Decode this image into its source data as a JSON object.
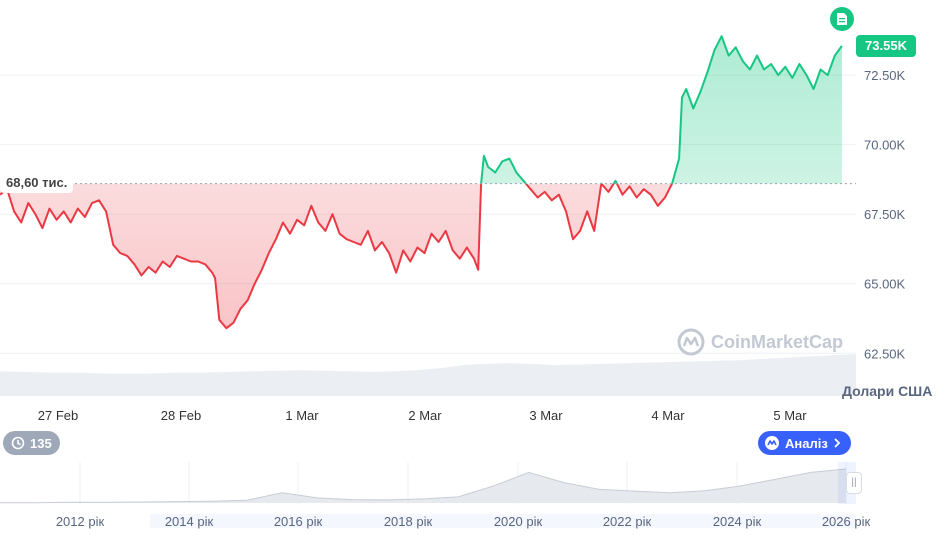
{
  "chart_data": {
    "type": "area",
    "x_axis_labels": [
      "27 Feb",
      "28 Feb",
      "1 Mar",
      "2 Mar",
      "3 Mar",
      "4 Mar",
      "5 Mar"
    ],
    "y_axis_labels": [
      "62.50K",
      "65.00K",
      "67.50K",
      "70.00K",
      "72.50K"
    ],
    "y_ticks": [
      62500,
      65000,
      67500,
      70000,
      72500
    ],
    "ylim": [
      61000,
      75200
    ],
    "x_range_days": [
      26.5,
      32.55
    ],
    "reference_value": 68600,
    "reference_label": "68,60 тис.",
    "last_value": 73550,
    "last_value_label": "73.55K",
    "currency_label": "Долари США",
    "above_color": "#16c784",
    "below_color": "#ea3943",
    "grid": "horizontal",
    "series": [
      {
        "points": [
          [
            26.5,
            68200
          ],
          [
            26.55,
            68400
          ],
          [
            26.6,
            67600
          ],
          [
            26.65,
            67200
          ],
          [
            26.7,
            67900
          ],
          [
            26.75,
            67500
          ],
          [
            26.8,
            67000
          ],
          [
            26.85,
            67700
          ],
          [
            26.9,
            67300
          ],
          [
            26.95,
            67600
          ],
          [
            27.0,
            67200
          ],
          [
            27.05,
            67700
          ],
          [
            27.1,
            67400
          ],
          [
            27.15,
            67900
          ],
          [
            27.2,
            68000
          ],
          [
            27.25,
            67600
          ],
          [
            27.3,
            66400
          ],
          [
            27.35,
            66100
          ],
          [
            27.4,
            66000
          ],
          [
            27.45,
            65700
          ],
          [
            27.5,
            65300
          ],
          [
            27.55,
            65600
          ],
          [
            27.6,
            65400
          ],
          [
            27.65,
            65800
          ],
          [
            27.7,
            65600
          ],
          [
            27.75,
            66000
          ],
          [
            27.8,
            65900
          ],
          [
            27.85,
            65800
          ],
          [
            27.9,
            65800
          ],
          [
            27.95,
            65700
          ],
          [
            28.0,
            65400
          ],
          [
            28.02,
            65200
          ],
          [
            28.05,
            63700
          ],
          [
            28.1,
            63400
          ],
          [
            28.15,
            63600
          ],
          [
            28.2,
            64100
          ],
          [
            28.25,
            64400
          ],
          [
            28.3,
            65000
          ],
          [
            28.35,
            65500
          ],
          [
            28.4,
            66100
          ],
          [
            28.45,
            66600
          ],
          [
            28.5,
            67200
          ],
          [
            28.55,
            66800
          ],
          [
            28.6,
            67300
          ],
          [
            28.65,
            67100
          ],
          [
            28.7,
            67800
          ],
          [
            28.75,
            67200
          ],
          [
            28.8,
            66900
          ],
          [
            28.85,
            67500
          ],
          [
            28.9,
            66800
          ],
          [
            28.95,
            66600
          ],
          [
            29.0,
            66500
          ],
          [
            29.05,
            66400
          ],
          [
            29.1,
            66900
          ],
          [
            29.15,
            66200
          ],
          [
            29.2,
            66500
          ],
          [
            29.25,
            66100
          ],
          [
            29.3,
            65400
          ],
          [
            29.35,
            66200
          ],
          [
            29.4,
            65800
          ],
          [
            29.45,
            66300
          ],
          [
            29.5,
            66100
          ],
          [
            29.55,
            66800
          ],
          [
            29.6,
            66500
          ],
          [
            29.65,
            66900
          ],
          [
            29.7,
            66200
          ],
          [
            29.75,
            65900
          ],
          [
            29.8,
            66300
          ],
          [
            29.85,
            65900
          ],
          [
            29.88,
            65500
          ],
          [
            29.9,
            68600
          ],
          [
            29.92,
            69600
          ],
          [
            29.95,
            69200
          ],
          [
            30.0,
            69000
          ],
          [
            30.05,
            69400
          ],
          [
            30.1,
            69500
          ],
          [
            30.15,
            69000
          ],
          [
            30.2,
            68700
          ],
          [
            30.25,
            68400
          ],
          [
            30.3,
            68100
          ],
          [
            30.35,
            68300
          ],
          [
            30.4,
            68000
          ],
          [
            30.45,
            68200
          ],
          [
            30.5,
            67600
          ],
          [
            30.55,
            66600
          ],
          [
            30.6,
            66900
          ],
          [
            30.65,
            67600
          ],
          [
            30.7,
            66900
          ],
          [
            30.75,
            68600
          ],
          [
            30.8,
            68300
          ],
          [
            30.85,
            68700
          ],
          [
            30.9,
            68200
          ],
          [
            30.95,
            68500
          ],
          [
            31.0,
            68100
          ],
          [
            31.05,
            68400
          ],
          [
            31.1,
            68200
          ],
          [
            31.15,
            67800
          ],
          [
            31.2,
            68100
          ],
          [
            31.25,
            68600
          ],
          [
            31.3,
            69500
          ],
          [
            31.32,
            71700
          ],
          [
            31.35,
            72000
          ],
          [
            31.4,
            71300
          ],
          [
            31.45,
            71900
          ],
          [
            31.5,
            72600
          ],
          [
            31.55,
            73400
          ],
          [
            31.6,
            73900
          ],
          [
            31.65,
            73200
          ],
          [
            31.7,
            73500
          ],
          [
            31.75,
            73000
          ],
          [
            31.8,
            72700
          ],
          [
            31.85,
            73200
          ],
          [
            31.9,
            72700
          ],
          [
            31.95,
            72900
          ],
          [
            32.0,
            72500
          ],
          [
            32.05,
            72800
          ],
          [
            32.1,
            72400
          ],
          [
            32.15,
            72900
          ],
          [
            32.2,
            72500
          ],
          [
            32.25,
            72000
          ],
          [
            32.3,
            72700
          ],
          [
            32.35,
            72500
          ],
          [
            32.4,
            73200
          ],
          [
            32.45,
            73550
          ]
        ]
      }
    ],
    "volume_values": [
      40,
      39,
      38,
      38,
      37,
      36,
      36,
      37,
      38,
      38,
      39,
      40,
      41,
      42,
      41,
      40,
      39,
      40,
      42,
      45,
      50,
      52,
      53,
      52,
      50,
      51,
      52,
      53,
      54,
      55,
      56,
      57,
      58,
      60,
      62,
      64,
      66,
      68
    ],
    "navigator": {
      "x_labels": [
        "2012 рік",
        "2014 рік",
        "2016 рік",
        "2018 рік",
        "2020 рік",
        "2022 рік",
        "2024 рік",
        "2026 рік"
      ],
      "history": [
        0.01,
        0.01,
        0.02,
        0.02,
        0.03,
        0.04,
        0.05,
        0.08,
        0.3,
        0.15,
        0.1,
        0.09,
        0.12,
        0.18,
        0.5,
        0.9,
        0.6,
        0.4,
        0.35,
        0.3,
        0.36,
        0.5,
        0.7,
        0.9,
        1.0
      ]
    }
  },
  "ui": {
    "ref_price_label": "68,60 тис.",
    "last_price_badge": "73.55K",
    "currency_label": "Долари США",
    "watermark_text": "CoinMarketCap",
    "pill_count": "135",
    "analysis_label": "Аналіз",
    "icons": {
      "doc": "document-icon",
      "pill": "history-icon",
      "analysis": "coinmarketcap-logo-icon",
      "chevron": "chevron-right-icon"
    }
  }
}
